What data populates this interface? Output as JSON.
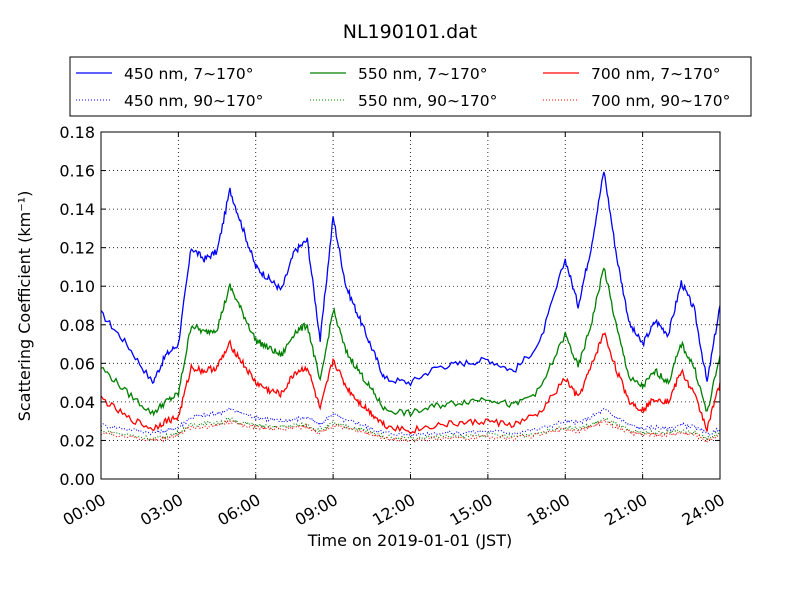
{
  "chart_data": {
    "type": "line",
    "title": "NL190101.dat",
    "xlabel": "Time on 2019-01-01 (JST)",
    "ylabel": "Scattering Coefficient (km⁻¹)",
    "xlim": [
      0,
      24
    ],
    "ylim": [
      0,
      0.18
    ],
    "x_ticks": [
      0,
      3,
      6,
      9,
      12,
      15,
      18,
      21,
      24
    ],
    "x_tick_labels": [
      "00:00",
      "03:00",
      "06:00",
      "09:00",
      "12:00",
      "15:00",
      "18:00",
      "21:00",
      "24:00"
    ],
    "y_ticks": [
      0,
      0.02,
      0.04,
      0.06,
      0.08,
      0.1,
      0.12,
      0.14,
      0.16,
      0.18
    ],
    "y_tick_labels": [
      "0.00",
      "0.02",
      "0.04",
      "0.06",
      "0.08",
      "0.10",
      "0.12",
      "0.14",
      "0.16",
      "0.18"
    ],
    "grid": true,
    "legend_position": "top, above plot, 3 columns",
    "x": [
      0,
      1,
      2,
      2.5,
      3,
      3.5,
      4,
      4.5,
      5,
      5.5,
      6,
      6.5,
      7,
      7.5,
      8,
      8.5,
      9,
      9.5,
      10,
      10.5,
      11,
      12,
      13,
      14,
      15,
      16,
      17,
      18,
      18.5,
      19,
      19.5,
      20,
      20.5,
      21,
      21.5,
      22,
      22.5,
      23,
      23.5,
      24
    ],
    "series": [
      {
        "name": "450 nm, 7∼170°",
        "color": "#0000ff",
        "style": "solid",
        "values": [
          0.086,
          0.07,
          0.05,
          0.064,
          0.07,
          0.12,
          0.114,
          0.118,
          0.15,
          0.13,
          0.11,
          0.104,
          0.098,
          0.118,
          0.124,
          0.072,
          0.136,
          0.1,
          0.084,
          0.068,
          0.052,
          0.05,
          0.058,
          0.06,
          0.062,
          0.056,
          0.07,
          0.114,
          0.09,
          0.12,
          0.16,
          0.115,
          0.08,
          0.07,
          0.082,
          0.075,
          0.102,
          0.088,
          0.05,
          0.09
        ]
      },
      {
        "name": "450 nm, 90∼170°",
        "color": "#0000ff",
        "style": "dotted",
        "values": [
          0.028,
          0.026,
          0.024,
          0.025,
          0.027,
          0.032,
          0.033,
          0.034,
          0.036,
          0.034,
          0.032,
          0.031,
          0.03,
          0.031,
          0.032,
          0.028,
          0.034,
          0.03,
          0.029,
          0.026,
          0.024,
          0.023,
          0.024,
          0.024,
          0.025,
          0.024,
          0.026,
          0.03,
          0.029,
          0.032,
          0.036,
          0.032,
          0.028,
          0.026,
          0.027,
          0.026,
          0.028,
          0.027,
          0.023,
          0.026
        ]
      },
      {
        "name": "550 nm, 7∼170°",
        "color": "#008000",
        "style": "solid",
        "values": [
          0.058,
          0.045,
          0.034,
          0.04,
          0.044,
          0.08,
          0.076,
          0.078,
          0.1,
          0.086,
          0.072,
          0.068,
          0.064,
          0.076,
          0.08,
          0.05,
          0.088,
          0.066,
          0.056,
          0.046,
          0.036,
          0.034,
          0.038,
          0.04,
          0.042,
          0.038,
          0.046,
          0.075,
          0.058,
          0.08,
          0.11,
          0.078,
          0.052,
          0.048,
          0.056,
          0.05,
          0.07,
          0.058,
          0.034,
          0.064
        ]
      },
      {
        "name": "550 nm, 90∼170°",
        "color": "#008000",
        "style": "dotted",
        "values": [
          0.025,
          0.023,
          0.021,
          0.022,
          0.024,
          0.028,
          0.029,
          0.029,
          0.031,
          0.029,
          0.028,
          0.027,
          0.027,
          0.028,
          0.028,
          0.025,
          0.029,
          0.027,
          0.026,
          0.024,
          0.022,
          0.021,
          0.022,
          0.022,
          0.023,
          0.022,
          0.024,
          0.027,
          0.026,
          0.028,
          0.031,
          0.028,
          0.025,
          0.024,
          0.024,
          0.024,
          0.025,
          0.024,
          0.021,
          0.024
        ]
      },
      {
        "name": "700 nm, 7∼170°",
        "color": "#ff0000",
        "style": "solid",
        "values": [
          0.042,
          0.032,
          0.026,
          0.03,
          0.032,
          0.058,
          0.056,
          0.058,
          0.07,
          0.06,
          0.05,
          0.046,
          0.044,
          0.055,
          0.058,
          0.036,
          0.062,
          0.048,
          0.04,
          0.034,
          0.028,
          0.025,
          0.028,
          0.029,
          0.03,
          0.028,
          0.034,
          0.052,
          0.042,
          0.058,
          0.076,
          0.056,
          0.04,
          0.036,
          0.042,
          0.04,
          0.056,
          0.044,
          0.026,
          0.05
        ]
      },
      {
        "name": "700 nm, 90∼170°",
        "color": "#ff0000",
        "style": "dotted",
        "values": [
          0.024,
          0.022,
          0.02,
          0.021,
          0.023,
          0.027,
          0.027,
          0.028,
          0.03,
          0.028,
          0.027,
          0.026,
          0.026,
          0.027,
          0.027,
          0.024,
          0.028,
          0.026,
          0.025,
          0.023,
          0.021,
          0.02,
          0.021,
          0.021,
          0.022,
          0.021,
          0.023,
          0.026,
          0.025,
          0.027,
          0.03,
          0.027,
          0.024,
          0.023,
          0.023,
          0.023,
          0.024,
          0.023,
          0.02,
          0.023
        ]
      }
    ]
  }
}
